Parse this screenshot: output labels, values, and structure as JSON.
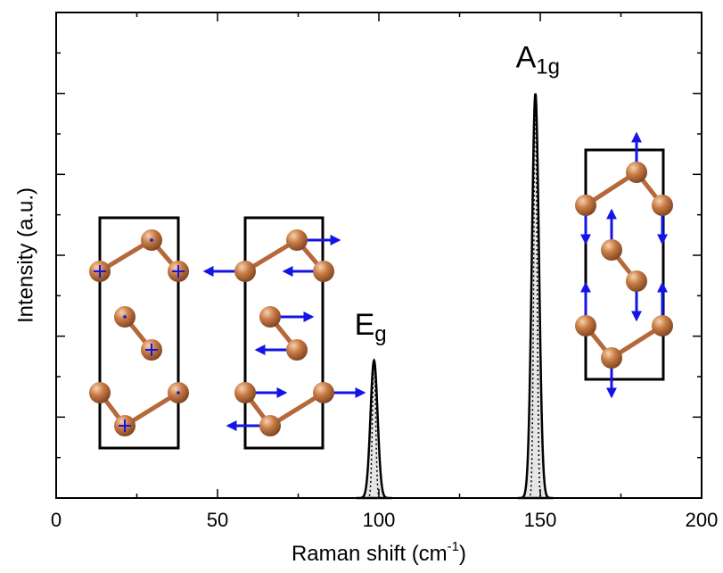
{
  "chart_data": {
    "type": "peaks",
    "ylabel": "Intensity (a.u.)",
    "xlabel": "Raman shift (cm",
    "xlabel_sup": "-1",
    "xlabel_end": ")",
    "xlim": [
      0,
      200
    ],
    "xticks": [
      0,
      50,
      100,
      150,
      200
    ],
    "xminor": [
      25,
      75,
      125,
      175
    ],
    "ylim": [
      0,
      6
    ],
    "yticks": [
      1,
      2,
      3,
      4,
      5
    ],
    "yminor": [
      0.5,
      1.5,
      2.5,
      3.5,
      4.5,
      5.5
    ],
    "color": "#000000",
    "fill": "#e6e6e6",
    "peaks": [
      {
        "label": "E",
        "sub": "g",
        "center": 98.5,
        "height": 1.7,
        "width": 1.1,
        "inner_width": 0.5
      },
      {
        "label": "A",
        "sub": "1g",
        "center": 148.5,
        "height": 5.0,
        "width": 1.1,
        "inner_width": 0.5
      }
    ]
  }
}
